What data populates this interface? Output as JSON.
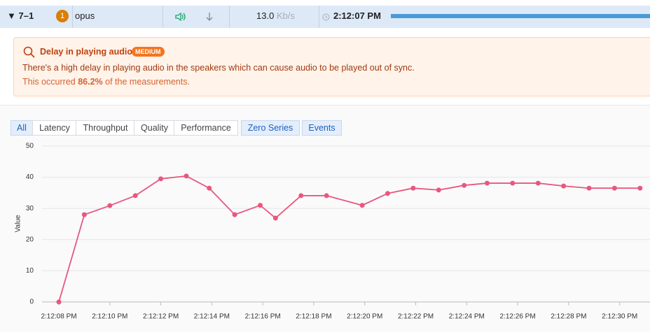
{
  "row": {
    "expander": "▼ 7–1",
    "badge": "1",
    "codec": "opus",
    "bitrate": "13.0",
    "bitrate_unit": "Kb/s",
    "time": "2:12:07 PM"
  },
  "alert": {
    "title": "Delay in playing audio",
    "severity": "MEDIUM",
    "description": "There's a high delay in playing audio in the speakers which can cause audio to be played out of sync.",
    "occurrence_prefix": "This occurred",
    "occurrence_value": "86.2%",
    "occurrence_suffix": "of the measurements."
  },
  "tabs": [
    "All",
    "Latency",
    "Throughput",
    "Quality",
    "Performance"
  ],
  "toggles": [
    "Zero Series",
    "Events"
  ],
  "chart_data": {
    "type": "line",
    "y_label": "Value",
    "color": "#e8577e",
    "grid": true,
    "x": [
      8,
      9,
      10,
      11,
      12,
      13,
      13.9,
      14.9,
      15.9,
      16.5,
      17.5,
      18.5,
      19.9,
      20.9,
      21.9,
      22.9,
      23.9,
      24.8,
      25.8,
      26.8,
      27.8,
      28.8,
      29.8,
      30.8
    ],
    "values": [
      0,
      28,
      30.9,
      34.1,
      39.5,
      40.4,
      36.5,
      28,
      31,
      26.9,
      34.1,
      34.1,
      31,
      34.8,
      36.5,
      35.9,
      37.4,
      38.1,
      38.1,
      38.1,
      37.2,
      36.5,
      36.5,
      36.5
    ],
    "xlim": [
      7.34,
      31.19
    ],
    "ylim": [
      0,
      50
    ],
    "yticks": [
      0,
      10,
      20,
      30,
      40,
      50
    ],
    "xticks": [
      {
        "value": 8,
        "label": "2:12:08 PM"
      },
      {
        "value": 10,
        "label": "2:12:10 PM"
      },
      {
        "value": 12,
        "label": "2:12:12 PM"
      },
      {
        "value": 14,
        "label": "2:12:14 PM"
      },
      {
        "value": 16,
        "label": "2:12:16 PM"
      },
      {
        "value": 18,
        "label": "2:12:18 PM"
      },
      {
        "value": 20,
        "label": "2:12:20 PM"
      },
      {
        "value": 22,
        "label": "2:12:22 PM"
      },
      {
        "value": 24,
        "label": "2:12:24 PM"
      },
      {
        "value": 26,
        "label": "2:12:26 PM"
      },
      {
        "value": 28,
        "label": "2:12:28 PM"
      },
      {
        "value": 30,
        "label": "2:12:30 PM"
      }
    ]
  }
}
